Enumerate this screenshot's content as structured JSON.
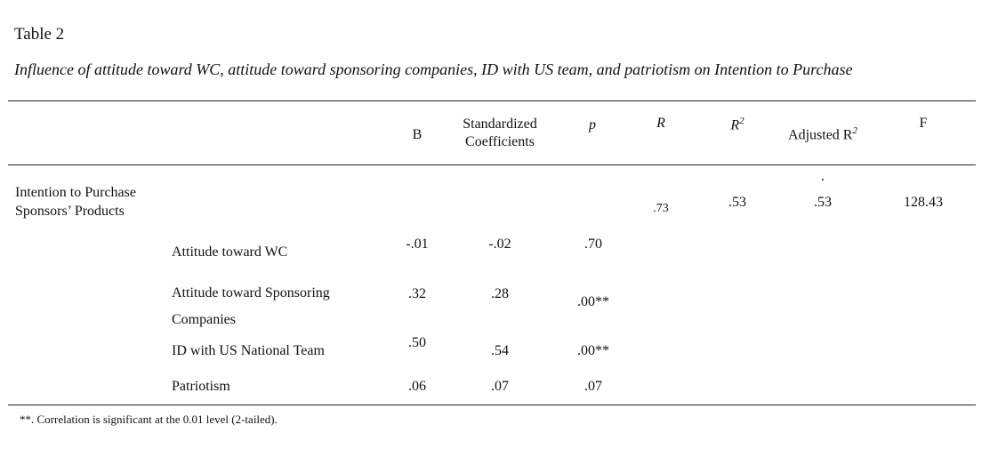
{
  "table_label": "Table 2",
  "caption": "Influence of attitude toward WC, attitude toward sponsoring companies, ID with US team, and patriotism on Intention to Purchase",
  "columns": {
    "b": "B",
    "std_line1": "Standardized",
    "std_line2": "Coefficients",
    "p": "p",
    "r": "R",
    "r2_base": "R",
    "r2_sup": "2",
    "adj_base": "Adjusted R",
    "adj_sup": "2",
    "f": "F"
  },
  "model": {
    "label_line1": "Intention to Purchase",
    "label_line2": "Sponsors’ Products",
    "r": ".73",
    "r2": ".53",
    "adj_dot": ".",
    "adj_r2": ".53",
    "f": "128.43"
  },
  "rows": [
    {
      "label_line1": "Attitude toward WC",
      "label_line2": "",
      "b": "-.01",
      "std": "-.02",
      "p": ".70"
    },
    {
      "label_line1": "Attitude toward Sponsoring",
      "label_line2": "Companies",
      "b": ".32",
      "std": ".28",
      "p": ".00**"
    },
    {
      "label_line1": "ID with US National Team",
      "label_line2": "",
      "b": ".50",
      "std": ".54",
      "p": ".00**"
    },
    {
      "label_line1": "Patriotism",
      "label_line2": "",
      "b": ".06",
      "std": ".07",
      "p": ".07"
    }
  ],
  "footnote": "**. Correlation is significant at the 0.01 level (2-tailed)."
}
